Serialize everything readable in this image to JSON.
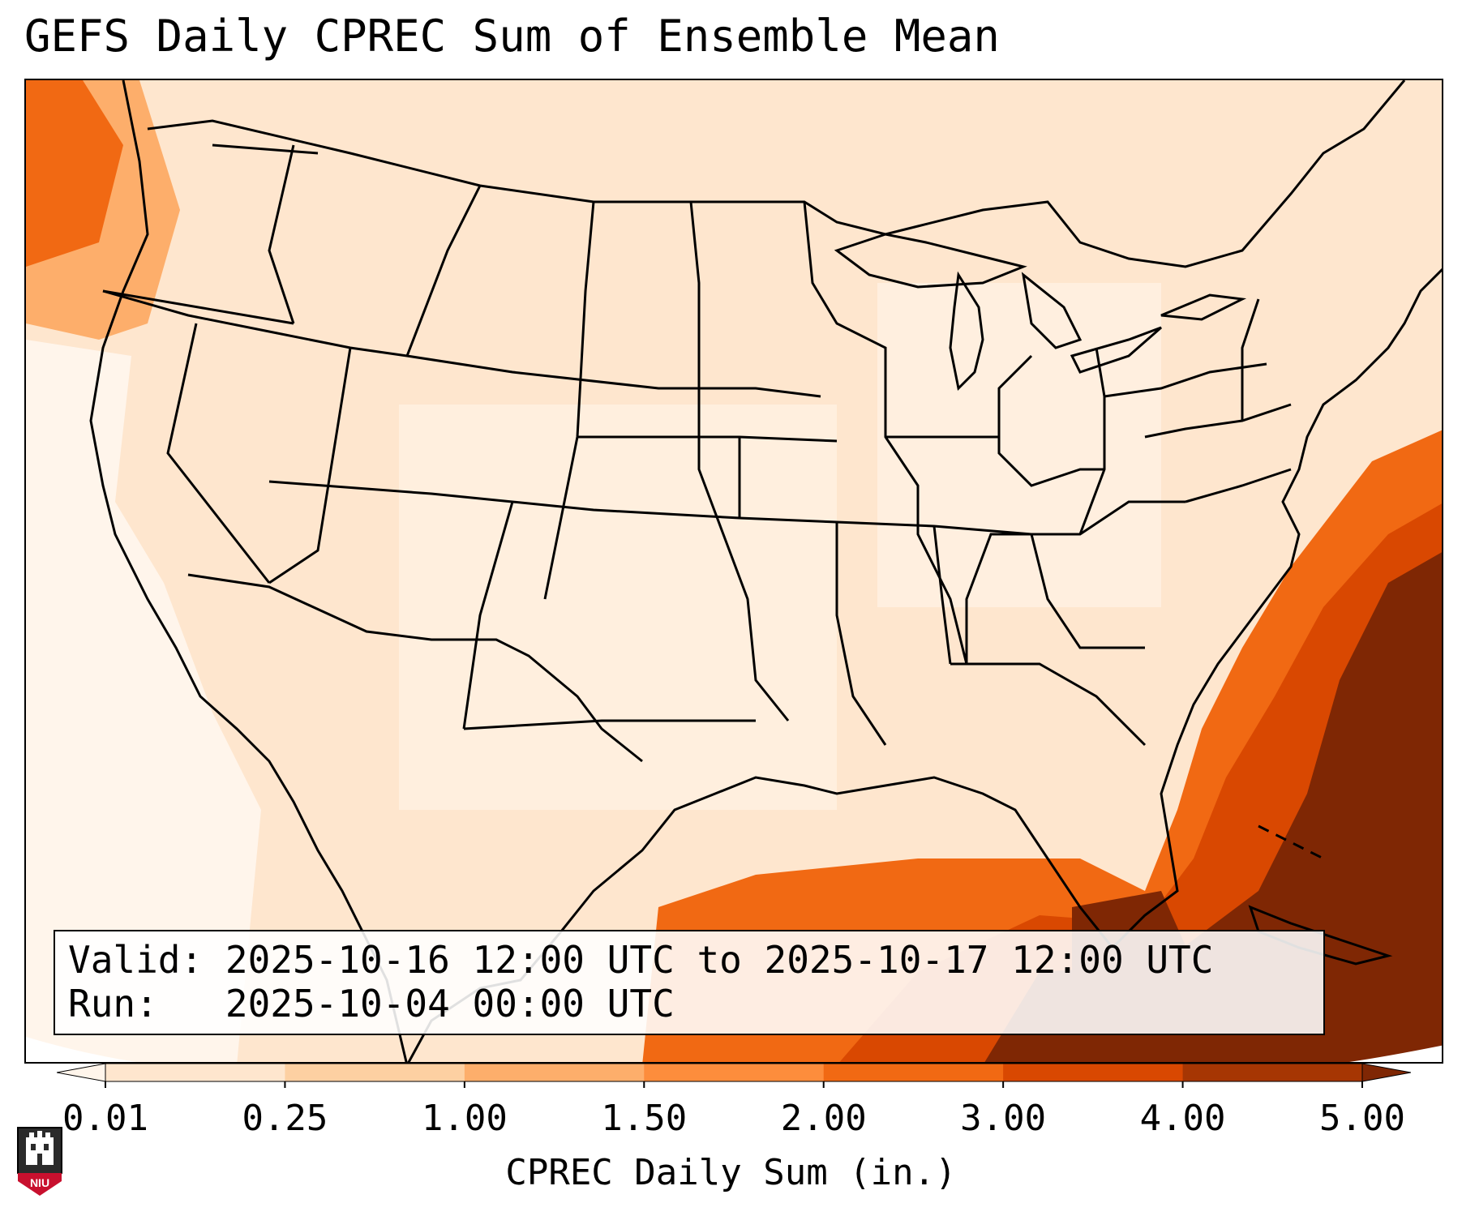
{
  "title": "GEFS Daily CPREC Sum of Ensemble Mean",
  "info": {
    "valid_label": "Valid:",
    "valid_value": "2025-10-16 12:00 UTC to 2025-10-17 12:00 UTC",
    "run_label": "Run:",
    "run_value": "2025-10-04 00:00 UTC"
  },
  "colorbar": {
    "label": "CPREC Daily Sum (in.)",
    "ticks": [
      "0.01",
      "0.25",
      "1.00",
      "1.50",
      "2.00",
      "3.00",
      "4.00",
      "5.00"
    ],
    "colors": [
      "#fff5eb",
      "#fee6ce",
      "#fdd0a2",
      "#fdae6b",
      "#fd8d3c",
      "#f16913",
      "#d94801",
      "#a63603",
      "#7f2704"
    ],
    "extend": "both"
  },
  "map": {
    "region": "CONUS",
    "ocean_land_colors": {
      "none": "#ffffff",
      "trace": "#fff5eb",
      "light": "#fee6ce",
      "moderate": "#fdd0a2",
      "heavy": "#f16913",
      "very_heavy": "#d94801",
      "extreme": "#7f2704"
    }
  },
  "logo": {
    "text": "NIU",
    "icon": "niu-castle-logo-icon"
  }
}
